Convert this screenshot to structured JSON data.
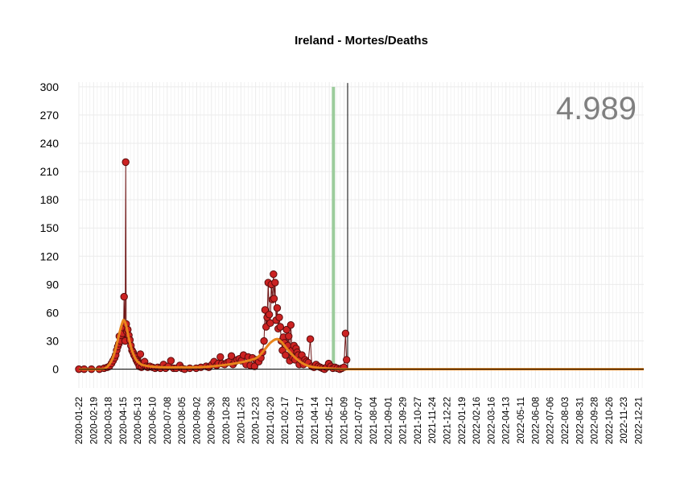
{
  "chart_data": {
    "type": "line",
    "title": "Ireland - Mortes/Deaths",
    "xlabel": "",
    "ylabel": "",
    "total_label": "4.989",
    "ylim": [
      -20,
      305
    ],
    "y_ticks": [
      0,
      30,
      60,
      90,
      120,
      150,
      180,
      210,
      240,
      270,
      300
    ],
    "x_range": [
      "2020-01-22",
      "2022-12-31"
    ],
    "x_tick_labels": [
      "2020-01-22",
      "2020-02-19",
      "2020-03-18",
      "2020-04-15",
      "2020-05-13",
      "2020-06-10",
      "2020-07-08",
      "2020-08-05",
      "2020-09-02",
      "2020-09-30",
      "2020-10-28",
      "2020-11-25",
      "2020-12-23",
      "2021-01-20",
      "2021-02-17",
      "2021-03-17",
      "2021-04-14",
      "2021-05-12",
      "2021-06-09",
      "2021-07-07",
      "2021-08-04",
      "2021-09-01",
      "2021-09-29",
      "2021-10-27",
      "2021-11-24",
      "2021-12-22",
      "2022-01-19",
      "2022-02-16",
      "2022-03-16",
      "2022-04-13",
      "2022-05-11",
      "2022-06-08",
      "2022-07-06",
      "2022-08-03",
      "2022-08-31",
      "2022-09-28",
      "2022-10-26",
      "2022-11-23",
      "2022-12-21"
    ],
    "grid": true,
    "reference_lines": {
      "today": "2021-06-16",
      "green_marker": "2021-05-20"
    },
    "colors": {
      "points": "#cc2222",
      "point_outline": "#5a0d0d",
      "daily_line": "#6e1414",
      "smooth": "#e8851c",
      "green_marker": "#9ccc9c",
      "today_line": "#000000",
      "total_label": "#808080",
      "grid": "#ebebeb"
    },
    "series": [
      {
        "type": "scatter",
        "points": [
          [
            "2020-01-22",
            0
          ],
          [
            "2020-02-01",
            0
          ],
          [
            "2020-02-15",
            0
          ],
          [
            "2020-03-01",
            0
          ],
          [
            "2020-03-10",
            1
          ],
          [
            "2020-03-16",
            2
          ],
          [
            "2020-03-20",
            3
          ],
          [
            "2020-03-24",
            6
          ],
          [
            "2020-03-27",
            9
          ],
          [
            "2020-03-30",
            12
          ],
          [
            "2020-04-01",
            15
          ],
          [
            "2020-04-03",
            20
          ],
          [
            "2020-04-05",
            24
          ],
          [
            "2020-04-07",
            27
          ],
          [
            "2020-04-08",
            35
          ],
          [
            "2020-04-10",
            30
          ],
          [
            "2020-04-12",
            36
          ],
          [
            "2020-04-14",
            38
          ],
          [
            "2020-04-16",
            44
          ],
          [
            "2020-04-17",
            77
          ],
          [
            "2020-04-19",
            30
          ],
          [
            "2020-04-20",
            220
          ],
          [
            "2020-04-21",
            48
          ],
          [
            "2020-04-22",
            40
          ],
          [
            "2020-04-24",
            42
          ],
          [
            "2020-04-26",
            36
          ],
          [
            "2020-04-28",
            31
          ],
          [
            "2020-04-30",
            25
          ],
          [
            "2020-05-02",
            20
          ],
          [
            "2020-05-04",
            18
          ],
          [
            "2020-05-06",
            15
          ],
          [
            "2020-05-08",
            13
          ],
          [
            "2020-05-10",
            10
          ],
          [
            "2020-05-12",
            8
          ],
          [
            "2020-05-14",
            6
          ],
          [
            "2020-05-16",
            3
          ],
          [
            "2020-05-18",
            16
          ],
          [
            "2020-05-20",
            2
          ],
          [
            "2020-05-23",
            5
          ],
          [
            "2020-05-26",
            8
          ],
          [
            "2020-05-29",
            3
          ],
          [
            "2020-06-01",
            2
          ],
          [
            "2020-06-05",
            3
          ],
          [
            "2020-06-10",
            2
          ],
          [
            "2020-06-15",
            1
          ],
          [
            "2020-06-20",
            2
          ],
          [
            "2020-06-25",
            1
          ],
          [
            "2020-07-01",
            5
          ],
          [
            "2020-07-05",
            1
          ],
          [
            "2020-07-10",
            3
          ],
          [
            "2020-07-15",
            9
          ],
          [
            "2020-07-20",
            1
          ],
          [
            "2020-07-25",
            1
          ],
          [
            "2020-08-01",
            4
          ],
          [
            "2020-08-05",
            1
          ],
          [
            "2020-08-10",
            0
          ],
          [
            "2020-08-20",
            1
          ],
          [
            "2020-09-01",
            1
          ],
          [
            "2020-09-10",
            2
          ],
          [
            "2020-09-20",
            3
          ],
          [
            "2020-09-25",
            2
          ],
          [
            "2020-10-01",
            5
          ],
          [
            "2020-10-05",
            8
          ],
          [
            "2020-10-10",
            4
          ],
          [
            "2020-10-13",
            6
          ],
          [
            "2020-10-17",
            13
          ],
          [
            "2020-10-20",
            6
          ],
          [
            "2020-10-25",
            5
          ],
          [
            "2020-10-30",
            7
          ],
          [
            "2020-11-03",
            8
          ],
          [
            "2020-11-07",
            14
          ],
          [
            "2020-11-10",
            5
          ],
          [
            "2020-11-14",
            8
          ],
          [
            "2020-11-18",
            10
          ],
          [
            "2020-11-22",
            11
          ],
          [
            "2020-11-26",
            9
          ],
          [
            "2020-11-30",
            15
          ],
          [
            "2020-12-05",
            5
          ],
          [
            "2020-12-09",
            13
          ],
          [
            "2020-12-13",
            4
          ],
          [
            "2020-12-17",
            12
          ],
          [
            "2020-12-21",
            3
          ],
          [
            "2020-12-25",
            10
          ],
          [
            "2020-12-29",
            8
          ],
          [
            "2021-01-02",
            12
          ],
          [
            "2021-01-05",
            18
          ],
          [
            "2021-01-08",
            30
          ],
          [
            "2021-01-10",
            63
          ],
          [
            "2021-01-12",
            45
          ],
          [
            "2021-01-14",
            55
          ],
          [
            "2021-01-16",
            92
          ],
          [
            "2021-01-18",
            58
          ],
          [
            "2021-01-20",
            49
          ],
          [
            "2021-01-22",
            90
          ],
          [
            "2021-01-24",
            74
          ],
          [
            "2021-01-26",
            101
          ],
          [
            "2021-01-27",
            75
          ],
          [
            "2021-01-29",
            92
          ],
          [
            "2021-01-31",
            52
          ],
          [
            "2021-02-02",
            65
          ],
          [
            "2021-02-04",
            43
          ],
          [
            "2021-02-06",
            55
          ],
          [
            "2021-02-08",
            45
          ],
          [
            "2021-02-10",
            30
          ],
          [
            "2021-02-12",
            20
          ],
          [
            "2021-02-14",
            34
          ],
          [
            "2021-02-16",
            28
          ],
          [
            "2021-02-18",
            15
          ],
          [
            "2021-02-20",
            42
          ],
          [
            "2021-02-22",
            25
          ],
          [
            "2021-02-24",
            35
          ],
          [
            "2021-02-26",
            9
          ],
          [
            "2021-02-28",
            47
          ],
          [
            "2021-03-02",
            20
          ],
          [
            "2021-03-04",
            12
          ],
          [
            "2021-03-06",
            25
          ],
          [
            "2021-03-08",
            10
          ],
          [
            "2021-03-10",
            22
          ],
          [
            "2021-03-12",
            18
          ],
          [
            "2021-03-14",
            15
          ],
          [
            "2021-03-16",
            5
          ],
          [
            "2021-03-18",
            10
          ],
          [
            "2021-03-21",
            15
          ],
          [
            "2021-03-24",
            5
          ],
          [
            "2021-03-27",
            10
          ],
          [
            "2021-03-30",
            8
          ],
          [
            "2021-04-02",
            7
          ],
          [
            "2021-04-06",
            32
          ],
          [
            "2021-04-09",
            3
          ],
          [
            "2021-04-13",
            2
          ],
          [
            "2021-04-17",
            5
          ],
          [
            "2021-04-21",
            3
          ],
          [
            "2021-04-25",
            2
          ],
          [
            "2021-04-29",
            1
          ],
          [
            "2021-05-03",
            0
          ],
          [
            "2021-05-07",
            2
          ],
          [
            "2021-05-11",
            6
          ],
          [
            "2021-05-15",
            3
          ],
          [
            "2021-05-19",
            1
          ],
          [
            "2021-05-23",
            2
          ],
          [
            "2021-05-27",
            1
          ],
          [
            "2021-06-01",
            0
          ],
          [
            "2021-06-05",
            1
          ],
          [
            "2021-06-09",
            2
          ],
          [
            "2021-06-12",
            38
          ],
          [
            "2021-06-14",
            10
          ]
        ]
      },
      {
        "type": "smooth",
        "points": [
          [
            "2020-01-22",
            0
          ],
          [
            "2020-03-01",
            0
          ],
          [
            "2020-03-15",
            2
          ],
          [
            "2020-03-25",
            10
          ],
          [
            "2020-04-01",
            22
          ],
          [
            "2020-04-08",
            38
          ],
          [
            "2020-04-14",
            50
          ],
          [
            "2020-04-17",
            52
          ],
          [
            "2020-04-21",
            46
          ],
          [
            "2020-04-26",
            33
          ],
          [
            "2020-05-02",
            20
          ],
          [
            "2020-05-10",
            10
          ],
          [
            "2020-05-20",
            5
          ],
          [
            "2020-06-05",
            3
          ],
          [
            "2020-07-01",
            2
          ],
          [
            "2020-08-01",
            2
          ],
          [
            "2020-09-01",
            2
          ],
          [
            "2020-10-01",
            3
          ],
          [
            "2020-11-01",
            5
          ],
          [
            "2020-12-01",
            8
          ],
          [
            "2020-12-25",
            12
          ],
          [
            "2021-01-08",
            20
          ],
          [
            "2021-01-20",
            28
          ],
          [
            "2021-02-01",
            32
          ],
          [
            "2021-02-10",
            29
          ],
          [
            "2021-02-20",
            22
          ],
          [
            "2021-03-05",
            14
          ],
          [
            "2021-03-20",
            7
          ],
          [
            "2021-04-05",
            3
          ],
          [
            "2021-05-01",
            1
          ],
          [
            "2021-06-16",
            0
          ],
          [
            "2021-08-01",
            0
          ],
          [
            "2022-12-31",
            0
          ]
        ]
      }
    ]
  }
}
